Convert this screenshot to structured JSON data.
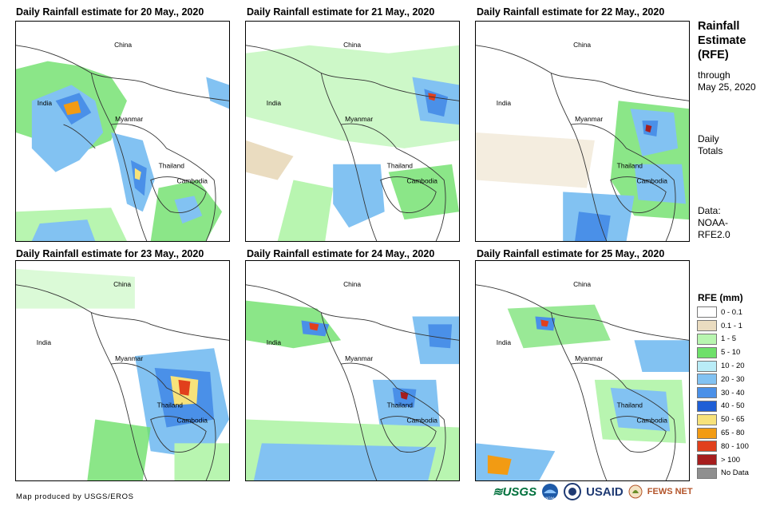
{
  "panels": [
    {
      "title": "Daily Rainfall estimate for 20 May., 2020",
      "places": [
        "China",
        "India",
        "Myanmar",
        "Thailand",
        "Cambodia"
      ]
    },
    {
      "title": "Daily Rainfall estimate for 21 May., 2020",
      "places": [
        "China",
        "India",
        "Myanmar",
        "Thailand",
        "Cambodia"
      ]
    },
    {
      "title": "Daily Rainfall estimate for 22 May., 2020",
      "places": [
        "China",
        "India",
        "Myanmar",
        "Thailand",
        "Cambodia"
      ]
    },
    {
      "title": "Daily Rainfall estimate for 23 May., 2020",
      "places": [
        "China",
        "India",
        "Myanmar",
        "Thailand",
        "Cambodia"
      ]
    },
    {
      "title": "Daily Rainfall estimate for 24 May., 2020",
      "places": [
        "China",
        "India",
        "Myanmar",
        "Thailand",
        "Cambodia"
      ]
    },
    {
      "title": "Daily Rainfall estimate for 25 May., 2020",
      "places": [
        "China",
        "India",
        "Myanmar",
        "Thailand",
        "Cambodia"
      ]
    }
  ],
  "side": {
    "title_lines": [
      "Rainfall",
      "Estimate",
      "(RFE)"
    ],
    "through_lines": [
      "through",
      "May 25, 2020"
    ],
    "daily_lines": [
      "Daily",
      "Totals"
    ],
    "data_lines": [
      "Data:",
      "NOAA-",
      "RFE2.0"
    ]
  },
  "legend": {
    "title": "RFE (mm)",
    "items": [
      {
        "label": "0 - 0.1",
        "color": "#ffffff"
      },
      {
        "label": "0.1 - 1",
        "color": "#eadcc0"
      },
      {
        "label": "1 - 5",
        "color": "#b8f5b0"
      },
      {
        "label": "5 - 10",
        "color": "#6ee06a"
      },
      {
        "label": "10 - 20",
        "color": "#b9ecf7"
      },
      {
        "label": "20 - 30",
        "color": "#82c2f2"
      },
      {
        "label": "30 - 40",
        "color": "#4a90e8"
      },
      {
        "label": "40 - 50",
        "color": "#1f5fd6"
      },
      {
        "label": "50 - 65",
        "color": "#f7e27a"
      },
      {
        "label": "65 - 80",
        "color": "#f29b13"
      },
      {
        "label": "80 - 100",
        "color": "#e1401c"
      },
      {
        "label": "> 100",
        "color": "#a61e1e"
      },
      {
        "label": "No Data",
        "color": "#8f8f8f"
      }
    ]
  },
  "footer": "Map produced by USGS/EROS",
  "logos": {
    "usgs": "USGS",
    "noaa": "NOAA",
    "usaid": "USAID",
    "fewsnet": "FEWS NET"
  }
}
